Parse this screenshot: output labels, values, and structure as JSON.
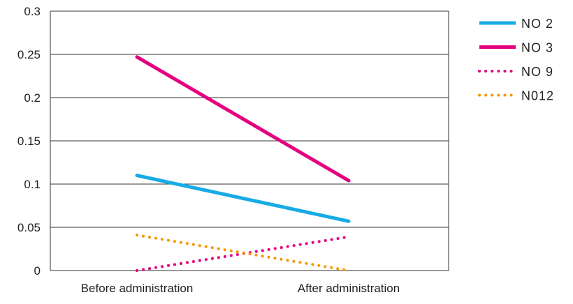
{
  "chart_data": {
    "type": "line",
    "title": "",
    "xlabel": "",
    "ylabel": "",
    "categories": [
      "Before administration",
      "After administration"
    ],
    "ylim": [
      0,
      0.3
    ],
    "yticks": [
      "0",
      "0.05",
      "0.1",
      "0.15",
      "0.2",
      "0.25",
      "0.3"
    ],
    "grid": "horizontal",
    "legend_position": "right",
    "series": [
      {
        "name": "NO 2",
        "values": [
          0.11,
          0.057
        ],
        "color": "#17ABE6",
        "style": "solid"
      },
      {
        "name": "NO 3",
        "values": [
          0.247,
          0.104
        ],
        "color": "#E5007F",
        "style": "solid"
      },
      {
        "name": "NO 9",
        "values": [
          0.0,
          0.039
        ],
        "color": "#E5007F",
        "style": "dotted"
      },
      {
        "name": "N012",
        "values": [
          0.041,
          0.0
        ],
        "color": "#F39800",
        "style": "dotted"
      }
    ]
  }
}
